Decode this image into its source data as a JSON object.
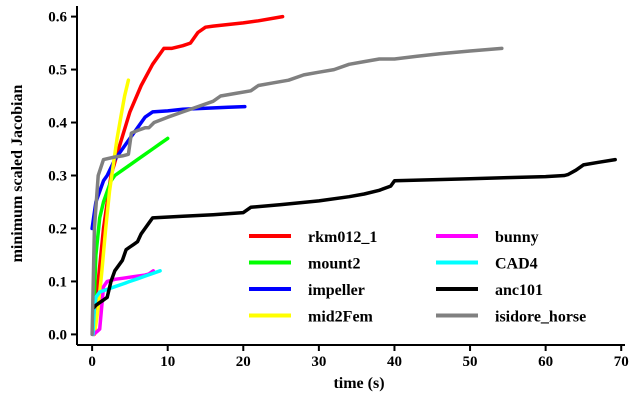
{
  "chart_data": {
    "type": "line",
    "title": "",
    "xlabel": "time (s)",
    "ylabel": "minimum scaled Jacobian",
    "xlim": [
      -2,
      70.5
    ],
    "ylim": [
      -0.02,
      0.62
    ],
    "xticks": [
      0,
      10,
      20,
      30,
      40,
      50,
      60,
      70
    ],
    "yticks": [
      0.0,
      0.1,
      0.2,
      0.3,
      0.4,
      0.5,
      0.6
    ],
    "xtick_labels": [
      "0",
      "10",
      "20",
      "30",
      "40",
      "50",
      "60",
      "70"
    ],
    "ytick_labels": [
      "0.0",
      "0.1",
      "0.2",
      "0.3",
      "0.4",
      "0.5",
      "0.6"
    ],
    "grid": false,
    "legend_position": "lower-right",
    "legend_columns": 2,
    "series": [
      {
        "name": "rkm012_1",
        "color": "#ff0000",
        "x": [
          0.3,
          0.8,
          1.5,
          2.5,
          3.5,
          5,
          6.5,
          8,
          9.5,
          10.5,
          12,
          13,
          14,
          15,
          16,
          18,
          20,
          22,
          25.2
        ],
        "y": [
          0.0,
          0.1,
          0.2,
          0.3,
          0.35,
          0.42,
          0.47,
          0.51,
          0.54,
          0.54,
          0.545,
          0.55,
          0.57,
          0.58,
          0.582,
          0.585,
          0.588,
          0.592,
          0.6
        ]
      },
      {
        "name": "mount2",
        "color": "#00ff00",
        "x": [
          0.1,
          0.5,
          1,
          1.5,
          2,
          2.5,
          3,
          4,
          5,
          6,
          7,
          8,
          9,
          10
        ],
        "y": [
          0.0,
          0.15,
          0.22,
          0.25,
          0.27,
          0.29,
          0.3,
          0.31,
          0.32,
          0.33,
          0.34,
          0.35,
          0.36,
          0.37
        ]
      },
      {
        "name": "impeller",
        "color": "#0000ff",
        "x": [
          0,
          0.2,
          0.5,
          1,
          1.5,
          2,
          3,
          4,
          5,
          6,
          7,
          8,
          10,
          12,
          15,
          18,
          20.2
        ],
        "y": [
          0.2,
          0.22,
          0.25,
          0.27,
          0.29,
          0.3,
          0.33,
          0.35,
          0.37,
          0.39,
          0.41,
          0.42,
          0.422,
          0.425,
          0.427,
          0.429,
          0.43
        ]
      },
      {
        "name": "mid2Fem",
        "color": "#ffff00",
        "x": [
          0.3,
          0.8,
          1.3,
          1.8,
          2.3,
          2.8,
          3.3,
          3.8,
          4.3,
          4.8
        ],
        "y": [
          0.0,
          0.05,
          0.12,
          0.2,
          0.27,
          0.32,
          0.37,
          0.41,
          0.45,
          0.48
        ]
      },
      {
        "name": "bunny",
        "color": "#ff00ff",
        "x": [
          0.2,
          0.6,
          1,
          1.5,
          2,
          2.5,
          3,
          4,
          5,
          6,
          7,
          7.5,
          8.1
        ],
        "y": [
          0.0,
          0.005,
          0.01,
          0.09,
          0.1,
          0.102,
          0.104,
          0.106,
          0.108,
          0.11,
          0.112,
          0.114,
          0.12
        ]
      },
      {
        "name": "CAD4",
        "color": "#00ffff",
        "x": [
          0.1,
          0.3,
          0.5,
          1,
          2,
          3,
          4,
          5,
          6,
          7,
          8,
          9
        ],
        "y": [
          0.0,
          0.05,
          0.07,
          0.08,
          0.085,
          0.09,
          0.095,
          0.1,
          0.105,
          0.11,
          0.115,
          0.12
        ]
      },
      {
        "name": "anc101",
        "color": "#000000",
        "x": [
          0.2,
          0.5,
          1,
          1.5,
          2,
          2.5,
          3,
          4,
          4.5,
          5,
          5.5,
          6,
          6.5,
          7,
          7.5,
          8,
          12,
          16,
          20,
          21,
          25,
          30,
          34,
          36,
          38,
          39.5,
          40,
          45,
          50,
          55,
          60,
          62.5,
          63,
          64,
          65,
          67,
          69.2
        ],
        "y": [
          0.05,
          0.055,
          0.06,
          0.065,
          0.07,
          0.1,
          0.12,
          0.14,
          0.16,
          0.165,
          0.17,
          0.175,
          0.19,
          0.2,
          0.21,
          0.22,
          0.223,
          0.226,
          0.23,
          0.24,
          0.245,
          0.252,
          0.26,
          0.265,
          0.272,
          0.28,
          0.29,
          0.292,
          0.294,
          0.296,
          0.298,
          0.3,
          0.302,
          0.31,
          0.32,
          0.325,
          0.33
        ]
      },
      {
        "name": "isidore_horse",
        "color": "#808080",
        "x": [
          0,
          0.3,
          0.8,
          1.5,
          3,
          4,
          4.8,
          5.2,
          6,
          7,
          7.5,
          8.2,
          10,
          12,
          14,
          16,
          17,
          19,
          21,
          22,
          24,
          26,
          28,
          30,
          32,
          34,
          36,
          38,
          40,
          43,
          46,
          50,
          54.2
        ],
        "y": [
          0.0,
          0.2,
          0.3,
          0.33,
          0.335,
          0.337,
          0.34,
          0.38,
          0.385,
          0.39,
          0.39,
          0.4,
          0.41,
          0.42,
          0.43,
          0.44,
          0.45,
          0.455,
          0.46,
          0.47,
          0.475,
          0.48,
          0.49,
          0.495,
          0.5,
          0.51,
          0.515,
          0.52,
          0.52,
          0.525,
          0.53,
          0.535,
          0.54
        ]
      }
    ]
  }
}
